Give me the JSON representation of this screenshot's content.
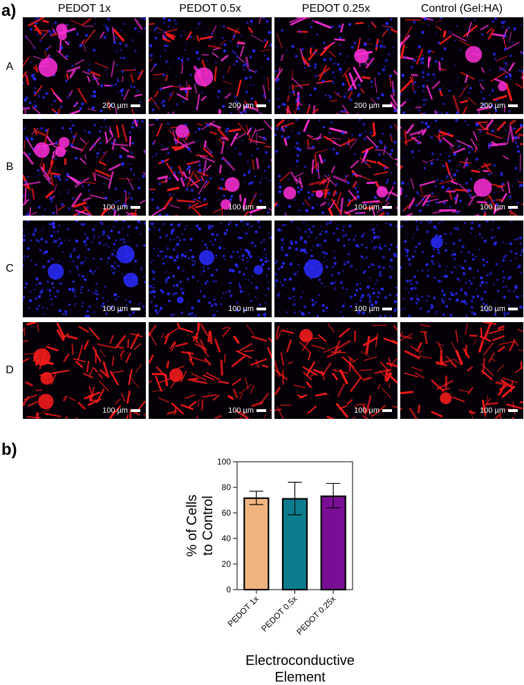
{
  "panels": {
    "a_label": "a)",
    "b_label": "b)"
  },
  "columns": [
    "PEDOT 1x",
    "PEDOT 0.5x",
    "PEDOT 0.25x",
    "Control (Gel:HA)"
  ],
  "rows": [
    {
      "label": "A",
      "scale": "200 µm",
      "stain": "merge-dense"
    },
    {
      "label": "B",
      "scale": "100 µm",
      "stain": "merge"
    },
    {
      "label": "C",
      "scale": "100 µm",
      "stain": "blue"
    },
    {
      "label": "D",
      "scale": "100 µm",
      "stain": "red"
    }
  ],
  "colors": {
    "blue_stain": "#2a2cff",
    "red_stain": "#ff1c1c",
    "magenta_stain": "#ff2fd8",
    "background": "#050008"
  },
  "chart_data": {
    "type": "bar",
    "categories": [
      "PEDOT 1x",
      "PEDOT 0.5x",
      "PEDOT 0.25x"
    ],
    "values": [
      71.5,
      71,
      73
    ],
    "error_low": [
      66.5,
      58.5,
      64
    ],
    "error_high": [
      77,
      84,
      83
    ],
    "colors": [
      "#f0b57f",
      "#0b7d8f",
      "#7a0d95"
    ],
    "ylabel": "% of Cells to Control",
    "xlabel": "Electroconductive Element",
    "ylim": [
      0,
      100
    ],
    "yticks": [
      "0",
      "20",
      "40",
      "60",
      "80",
      "100"
    ]
  }
}
